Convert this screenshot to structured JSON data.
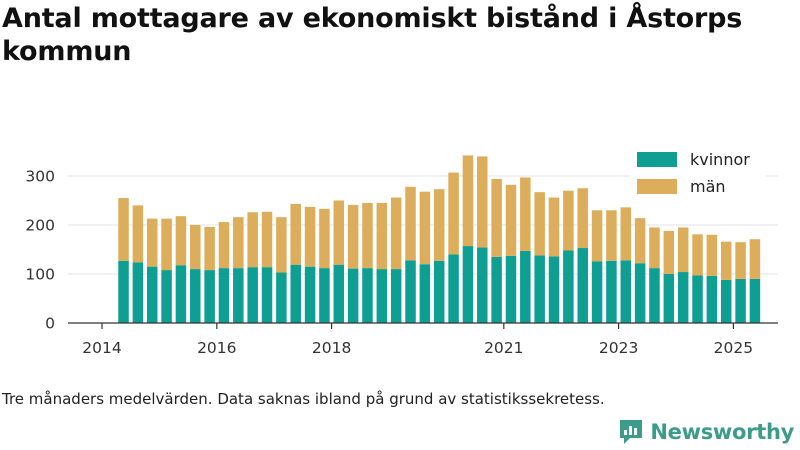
{
  "title": "Antal mottagare av ekonomiskt bistånd i Åstorps kommun",
  "note": "Tre månaders medelvärden. Data saknas ibland på grund av statistikssekretess.",
  "brand": "Newsworthy",
  "colors": {
    "kvinnor": "#0f9e92",
    "man": "#dcae5b",
    "axis": "#333333",
    "grid": "#e3e3e3",
    "brand": "#3d9b8a"
  },
  "chart_data": {
    "type": "bar",
    "stacked": true,
    "xlabel": "",
    "ylabel": "",
    "ylim": [
      0,
      360
    ],
    "yticks": [
      0,
      100,
      200,
      300
    ],
    "xticks": [
      "2014",
      "2016",
      "2018",
      "2021",
      "2023",
      "2025"
    ],
    "legend": {
      "placement": "top-right"
    },
    "categories": [
      "2014-Q2",
      "2014-Q3",
      "2014-Q4",
      "2015-Q1",
      "2015-Q2",
      "2015-Q3",
      "2015-Q4",
      "2016-Q1",
      "2016-Q2",
      "2016-Q3",
      "2016-Q4",
      "2017-Q1",
      "2017-Q2",
      "2017-Q3",
      "2017-Q4",
      "2018-Q1",
      "2018-Q2",
      "2018-Q3",
      "2018-Q4",
      "2019-Q1",
      "2019-Q2",
      "2019-Q3",
      "2019-Q4",
      "2020-Q1",
      "2020-Q2",
      "2020-Q3",
      "2020-Q4",
      "2021-Q1",
      "2021-Q2",
      "2021-Q3",
      "2021-Q4",
      "2022-Q1",
      "2022-Q2",
      "2022-Q3",
      "2022-Q4",
      "2023-Q1",
      "2023-Q2",
      "2023-Q3",
      "2023-Q4",
      "2024-Q1",
      "2024-Q2",
      "2024-Q3",
      "2024-Q4",
      "2025-Q1",
      "2025-Q2"
    ],
    "series": [
      {
        "name": "kvinnor",
        "values": [
          127,
          124,
          115,
          108,
          118,
          110,
          108,
          112,
          112,
          114,
          114,
          103,
          119,
          115,
          112,
          119,
          111,
          112,
          110,
          110,
          128,
          120,
          127,
          140,
          157,
          154,
          135,
          137,
          147,
          138,
          136,
          148,
          153,
          126,
          127,
          128,
          122,
          112,
          100,
          104,
          97,
          96,
          88,
          90,
          90
        ]
      },
      {
        "name": "män",
        "values": [
          128,
          116,
          98,
          105,
          100,
          90,
          88,
          94,
          104,
          112,
          113,
          113,
          124,
          122,
          121,
          131,
          130,
          133,
          135,
          146,
          150,
          148,
          146,
          167,
          185,
          186,
          159,
          145,
          150,
          129,
          120,
          122,
          122,
          104,
          103,
          108,
          92,
          83,
          88,
          91,
          84,
          84,
          78,
          75,
          81
        ]
      }
    ]
  }
}
